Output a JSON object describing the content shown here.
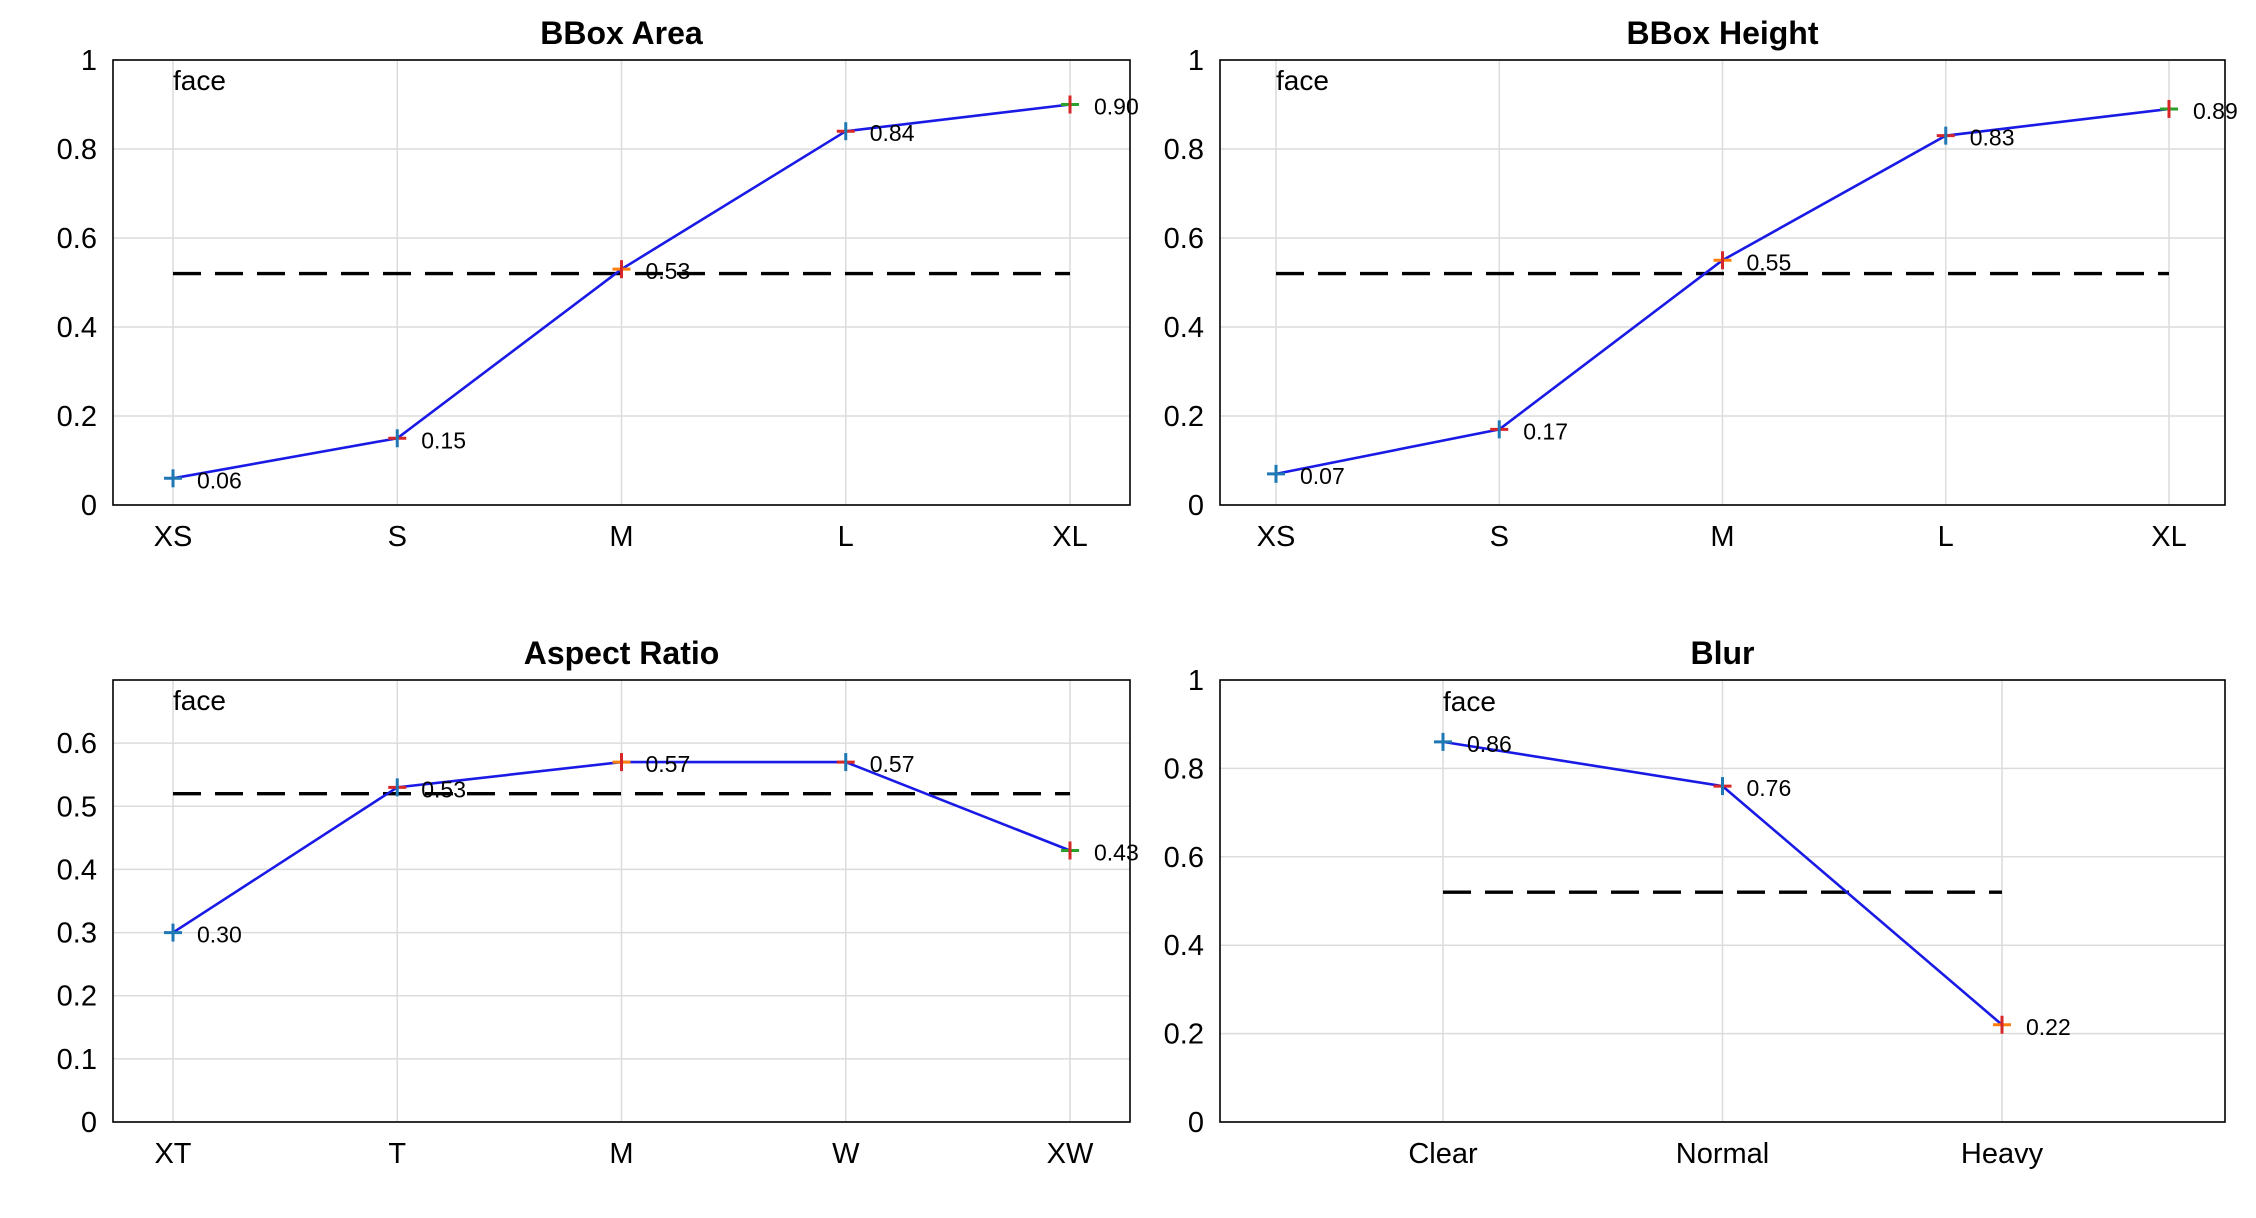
{
  "chart_data": [
    {
      "type": "line",
      "title": "BBox Area",
      "annotation": "face",
      "categories": [
        "XS",
        "S",
        "M",
        "L",
        "XL"
      ],
      "values": [
        0.06,
        0.15,
        0.53,
        0.84,
        0.9
      ],
      "value_labels": [
        "0.06",
        "0.15",
        "0.53",
        "0.84",
        "0.90"
      ],
      "reference_line": 0.52,
      "ylim": [
        0,
        1
      ],
      "yticks": [
        0,
        0.2,
        0.4,
        0.6,
        0.8,
        1
      ],
      "ytick_labels": [
        "0",
        "0.2",
        "0.4",
        "0.6",
        "0.8",
        "1"
      ],
      "grid": true,
      "colors": {
        "line": "#1a1ae6",
        "reference": "#000000"
      }
    },
    {
      "type": "line",
      "title": "BBox Height",
      "annotation": "face",
      "categories": [
        "XS",
        "S",
        "M",
        "L",
        "XL"
      ],
      "values": [
        0.07,
        0.17,
        0.55,
        0.83,
        0.89
      ],
      "value_labels": [
        "0.07",
        "0.17",
        "0.55",
        "0.83",
        "0.89"
      ],
      "reference_line": 0.52,
      "ylim": [
        0,
        1
      ],
      "yticks": [
        0,
        0.2,
        0.4,
        0.6,
        0.8,
        1
      ],
      "ytick_labels": [
        "0",
        "0.2",
        "0.4",
        "0.6",
        "0.8",
        "1"
      ],
      "grid": true,
      "colors": {
        "line": "#1a1ae6",
        "reference": "#000000"
      }
    },
    {
      "type": "line",
      "title": "Aspect Ratio",
      "annotation": "face",
      "categories": [
        "XT",
        "T",
        "M",
        "W",
        "XW"
      ],
      "values": [
        0.3,
        0.53,
        0.57,
        0.57,
        0.43
      ],
      "value_labels": [
        "0.30",
        "0.53",
        "0.57",
        "0.57",
        "0.43"
      ],
      "reference_line": 0.52,
      "ylim": [
        0,
        0.7
      ],
      "yticks": [
        0,
        0.1,
        0.2,
        0.3,
        0.4,
        0.5,
        0.6
      ],
      "ytick_labels": [
        "0",
        "0.1",
        "0.2",
        "0.3",
        "0.4",
        "0.5",
        "0.6"
      ],
      "grid": true,
      "colors": {
        "line": "#1a1ae6",
        "reference": "#000000"
      }
    },
    {
      "type": "line",
      "title": "Blur",
      "annotation": "face",
      "categories": [
        "Clear",
        "Normal",
        "Heavy"
      ],
      "values": [
        0.86,
        0.76,
        0.22
      ],
      "value_labels": [
        "0.86",
        "0.76",
        "0.22"
      ],
      "reference_line": 0.52,
      "ylim": [
        0,
        1
      ],
      "yticks": [
        0,
        0.2,
        0.4,
        0.6,
        0.8,
        1
      ],
      "ytick_labels": [
        "0",
        "0.2",
        "0.4",
        "0.6",
        "0.8",
        "1"
      ],
      "grid": true,
      "colors": {
        "line": "#1a1ae6",
        "reference": "#000000"
      }
    }
  ]
}
